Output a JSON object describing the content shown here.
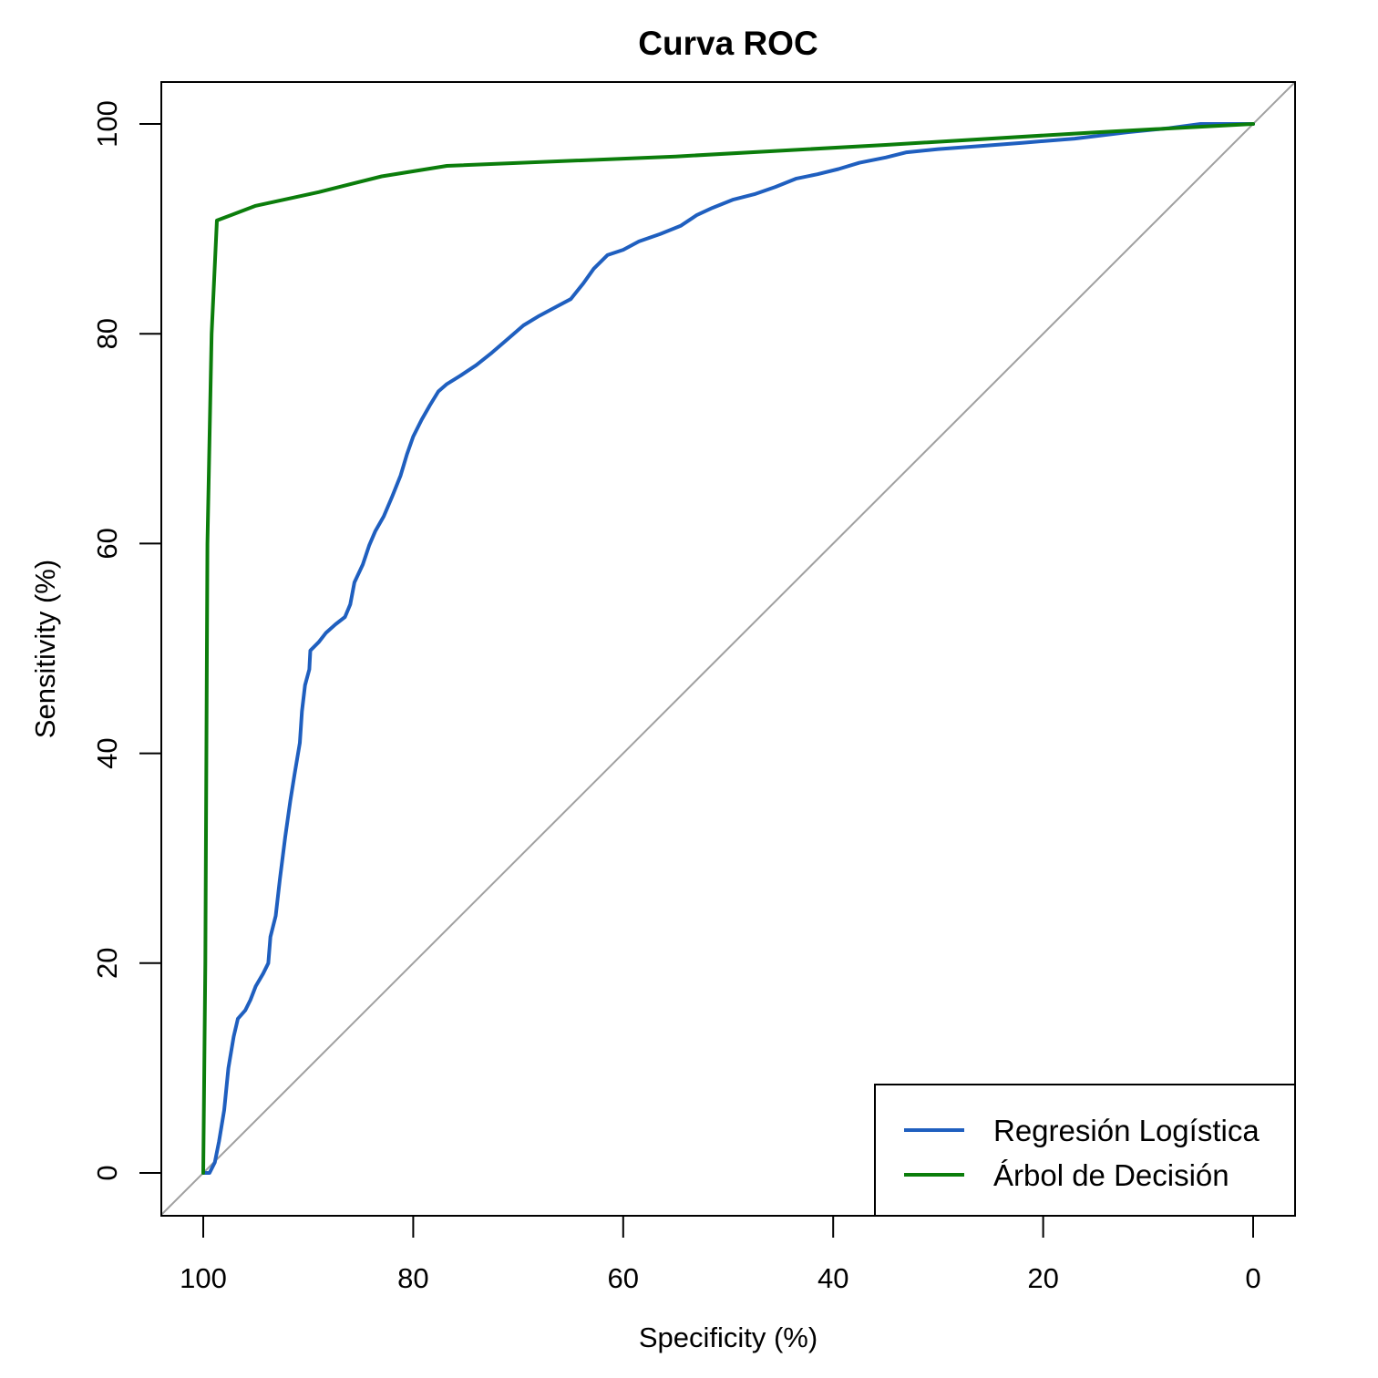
{
  "chart_data": {
    "type": "line",
    "title": "Curva ROC",
    "xlabel": "Specificity (%)",
    "ylabel": "Sensitivity (%)",
    "xlim": [
      100,
      0
    ],
    "ylim": [
      0,
      100
    ],
    "x_reversed": true,
    "x_ticks": [
      100,
      80,
      60,
      40,
      20,
      0
    ],
    "y_ticks": [
      0,
      20,
      40,
      60,
      80,
      100
    ],
    "grid": false,
    "legend_position": "bottom-right",
    "reference_line": {
      "from": [
        100,
        0
      ],
      "to": [
        0,
        100
      ],
      "color": "#a0a0a0"
    },
    "series": [
      {
        "name": "Regresión Logística",
        "color": "#1f5fbf",
        "points": [
          [
            100,
            0
          ],
          [
            99.4,
            0
          ],
          [
            98.9,
            1
          ],
          [
            98.5,
            3
          ],
          [
            98.0,
            6
          ],
          [
            97.6,
            10
          ],
          [
            97.1,
            13
          ],
          [
            96.7,
            14.7
          ],
          [
            96.0,
            15.5
          ],
          [
            95.5,
            16.5
          ],
          [
            95.0,
            17.8
          ],
          [
            94.3,
            19
          ],
          [
            93.8,
            20
          ],
          [
            93.6,
            22.5
          ],
          [
            93.1,
            24.5
          ],
          [
            92.7,
            28
          ],
          [
            92.2,
            32
          ],
          [
            91.7,
            35.5
          ],
          [
            91.3,
            38
          ],
          [
            90.8,
            41
          ],
          [
            90.6,
            44
          ],
          [
            90.3,
            46.5
          ],
          [
            89.9,
            48
          ],
          [
            89.8,
            49.8
          ],
          [
            89.0,
            50.6
          ],
          [
            88.3,
            51.5
          ],
          [
            87.4,
            52.3
          ],
          [
            86.5,
            53.0
          ],
          [
            86.0,
            54.2
          ],
          [
            85.6,
            56.3
          ],
          [
            84.8,
            58
          ],
          [
            84.2,
            59.8
          ],
          [
            83.6,
            61.2
          ],
          [
            82.8,
            62.6
          ],
          [
            82.0,
            64.5
          ],
          [
            81.2,
            66.5
          ],
          [
            80.6,
            68.5
          ],
          [
            80.0,
            70.2
          ],
          [
            79.2,
            71.8
          ],
          [
            78.4,
            73.2
          ],
          [
            77.6,
            74.5
          ],
          [
            76.8,
            75.2
          ],
          [
            75.5,
            76.0
          ],
          [
            74.0,
            77.0
          ],
          [
            72.5,
            78.2
          ],
          [
            71.0,
            79.5
          ],
          [
            69.5,
            80.8
          ],
          [
            68.0,
            81.7
          ],
          [
            66.5,
            82.5
          ],
          [
            65.0,
            83.3
          ],
          [
            63.8,
            84.8
          ],
          [
            62.8,
            86.2
          ],
          [
            61.5,
            87.5
          ],
          [
            60.0,
            88.0
          ],
          [
            58.5,
            88.8
          ],
          [
            56.5,
            89.5
          ],
          [
            54.5,
            90.3
          ],
          [
            53.0,
            91.3
          ],
          [
            51.5,
            92.0
          ],
          [
            49.5,
            92.8
          ],
          [
            47.5,
            93.3
          ],
          [
            45.5,
            94.0
          ],
          [
            43.5,
            94.8
          ],
          [
            41.5,
            95.2
          ],
          [
            39.5,
            95.7
          ],
          [
            37.5,
            96.3
          ],
          [
            35.0,
            96.8
          ],
          [
            33.0,
            97.3
          ],
          [
            30.0,
            97.6
          ],
          [
            26.0,
            97.9
          ],
          [
            22.0,
            98.2
          ],
          [
            17.0,
            98.6
          ],
          [
            12.0,
            99.2
          ],
          [
            8.0,
            99.6
          ],
          [
            5.0,
            100
          ],
          [
            0,
            100
          ]
        ]
      },
      {
        "name": "Árbol de Decisión",
        "color": "#0b7d0b",
        "points": [
          [
            100,
            0
          ],
          [
            99.8,
            20
          ],
          [
            99.6,
            60
          ],
          [
            99.2,
            80
          ],
          [
            98.7,
            90.8
          ],
          [
            95.0,
            92.2
          ],
          [
            89.0,
            93.5
          ],
          [
            83.0,
            95.0
          ],
          [
            76.8,
            96.0
          ],
          [
            55.0,
            96.9
          ],
          [
            35.0,
            98.0
          ],
          [
            15.0,
            99.2
          ],
          [
            0,
            100
          ]
        ]
      }
    ]
  }
}
